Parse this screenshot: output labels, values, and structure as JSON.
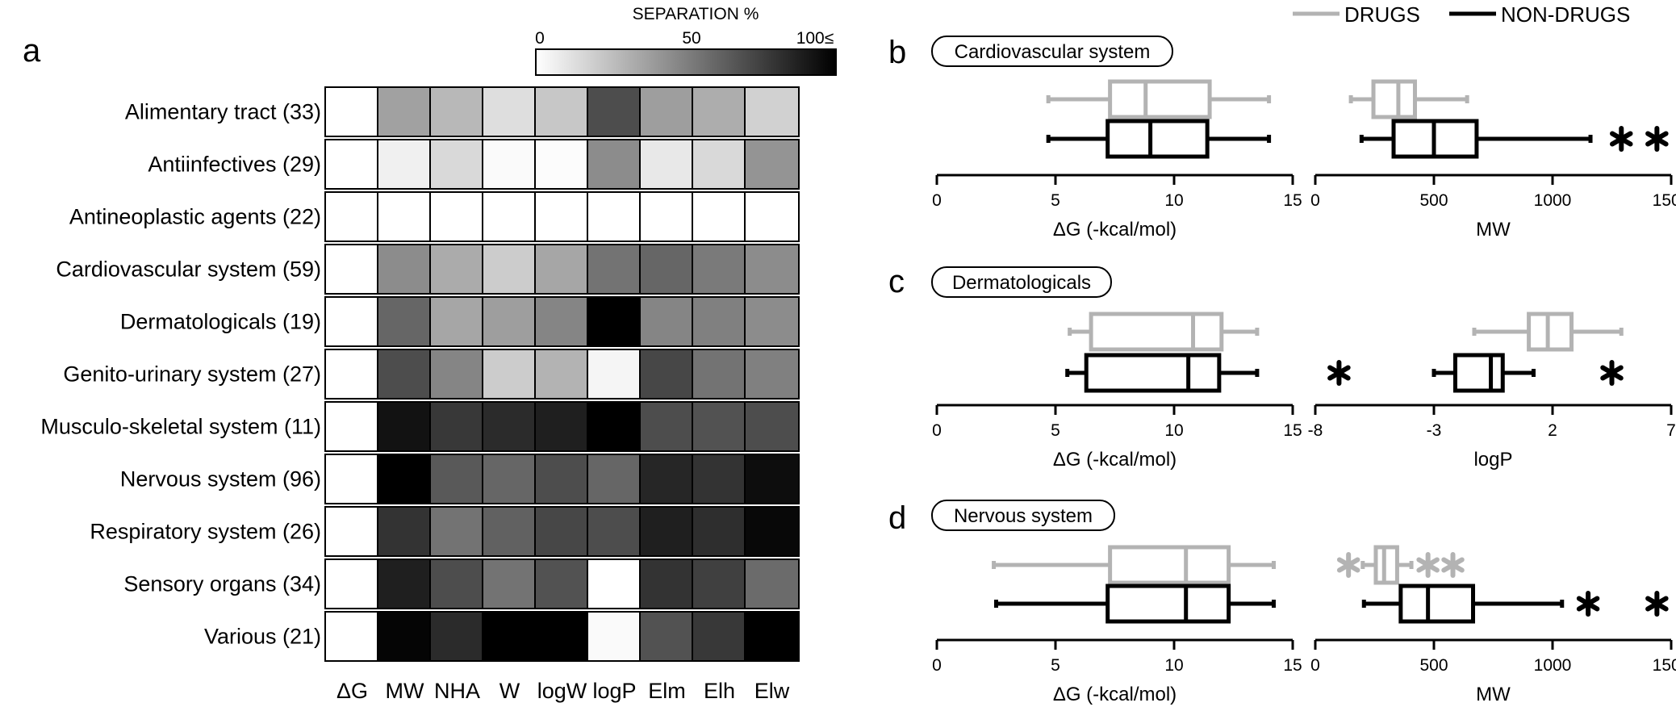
{
  "legend": {
    "items": [
      {
        "label": "DRUGS",
        "color": "#b3b3b3"
      },
      {
        "label": "NON-DRUGS",
        "color": "#000000"
      }
    ]
  },
  "panel_a": {
    "letter": "a",
    "colorbar": {
      "title": "SEPARATION %",
      "ticks": [
        "0",
        "50",
        "100≤"
      ]
    }
  },
  "panel_b": {
    "letter": "b",
    "title": "Cardiovascular system"
  },
  "panel_c": {
    "letter": "c",
    "title": "Dermatologicals"
  },
  "panel_d": {
    "letter": "d",
    "title": "Nervous system"
  },
  "chart_data": [
    {
      "type": "heatmap",
      "panel": "a",
      "colorbar_label": "SEPARATION %",
      "colorbar_range": [
        0,
        100
      ],
      "colorbar_ticks": [
        "0",
        "50",
        "100≤"
      ],
      "rows": [
        "Alimentary tract (33)",
        "Antiinfectives (29)",
        "Antineoplastic agents (22)",
        "Cardiovascular system (59)",
        "Dermatologicals (19)",
        "Genito-urinary system (27)",
        "Musculo-skeletal system (11)",
        "Nervous system (96)",
        "Respiratory system (26)",
        "Sensory organs (34)",
        "Various (21)"
      ],
      "columns": [
        "ΔG",
        "MW",
        "NHA",
        "W",
        "logW",
        "logP",
        "Elm",
        "Elh",
        "Elw"
      ],
      "values": [
        [
          0,
          37,
          28,
          13,
          22,
          70,
          38,
          32,
          18
        ],
        [
          0,
          6,
          15,
          2,
          1,
          45,
          9,
          15,
          42
        ],
        [
          0,
          0,
          0,
          0,
          0,
          0,
          0,
          0,
          0
        ],
        [
          0,
          45,
          33,
          20,
          35,
          55,
          60,
          52,
          45
        ],
        [
          0,
          60,
          35,
          38,
          48,
          100,
          48,
          50,
          45
        ],
        [
          0,
          70,
          48,
          20,
          30,
          4,
          72,
          55,
          50
        ],
        [
          0,
          93,
          78,
          83,
          88,
          100,
          70,
          68,
          70
        ],
        [
          0,
          100,
          65,
          60,
          70,
          60,
          85,
          80,
          95
        ],
        [
          0,
          80,
          55,
          62,
          72,
          70,
          88,
          82,
          97
        ],
        [
          0,
          88,
          70,
          55,
          68,
          0,
          80,
          75,
          58
        ],
        [
          0,
          98,
          83,
          100,
          100,
          2,
          68,
          78,
          100
        ]
      ]
    },
    {
      "type": "boxplot",
      "panel": "b",
      "title": "Cardiovascular system",
      "plots": [
        {
          "xlabel": "ΔG (-kcal/mol)",
          "xlim": [
            0,
            15
          ],
          "xticks": [
            0,
            5,
            10,
            15
          ],
          "series": [
            {
              "name": "DRUGS",
              "whisker_low": 4.7,
              "q1": 7.3,
              "median": 8.8,
              "q3": 11.5,
              "whisker_high": 14.0,
              "outliers": []
            },
            {
              "name": "NON-DRUGS",
              "whisker_low": 4.7,
              "q1": 7.2,
              "median": 9.0,
              "q3": 11.4,
              "whisker_high": 14.0,
              "outliers": []
            }
          ]
        },
        {
          "xlabel": "MW",
          "xlim": [
            0,
            1500
          ],
          "xticks": [
            0,
            500,
            1000,
            1500
          ],
          "series": [
            {
              "name": "DRUGS",
              "whisker_low": 150,
              "q1": 245,
              "median": 350,
              "q3": 420,
              "whisker_high": 640,
              "outliers": []
            },
            {
              "name": "NON-DRUGS",
              "whisker_low": 195,
              "q1": 330,
              "median": 500,
              "q3": 680,
              "whisker_high": 1160,
              "outliers": [
                1290,
                1440
              ]
            }
          ]
        }
      ]
    },
    {
      "type": "boxplot",
      "panel": "c",
      "title": "Dermatologicals",
      "plots": [
        {
          "xlabel": "ΔG (-kcal/mol)",
          "xlim": [
            0,
            15
          ],
          "xticks": [
            0,
            5,
            10,
            15
          ],
          "series": [
            {
              "name": "DRUGS",
              "whisker_low": 5.6,
              "q1": 6.5,
              "median": 10.8,
              "q3": 12.0,
              "whisker_high": 13.5,
              "outliers": []
            },
            {
              "name": "NON-DRUGS",
              "whisker_low": 5.5,
              "q1": 6.3,
              "median": 10.6,
              "q3": 11.9,
              "whisker_high": 13.5,
              "outliers": []
            }
          ]
        },
        {
          "xlabel": "logP",
          "xlim": [
            -8,
            7
          ],
          "xticks": [
            -8,
            -3,
            2,
            7
          ],
          "series": [
            {
              "name": "DRUGS",
              "whisker_low": -1.3,
              "q1": 1.0,
              "median": 1.8,
              "q3": 2.8,
              "whisker_high": 4.9,
              "outliers": []
            },
            {
              "name": "NON-DRUGS",
              "whisker_low": -3.0,
              "q1": -2.1,
              "median": -0.6,
              "q3": -0.1,
              "whisker_high": 1.2,
              "outliers": [
                -7.0,
                4.5
              ]
            }
          ]
        }
      ]
    },
    {
      "type": "boxplot",
      "panel": "d",
      "title": "Nervous system",
      "plots": [
        {
          "xlabel": "ΔG (-kcal/mol)",
          "xlim": [
            0,
            15
          ],
          "xticks": [
            0,
            5,
            10,
            15
          ],
          "series": [
            {
              "name": "DRUGS",
              "whisker_low": 2.4,
              "q1": 7.3,
              "median": 10.5,
              "q3": 12.3,
              "whisker_high": 14.2,
              "outliers": []
            },
            {
              "name": "NON-DRUGS",
              "whisker_low": 2.5,
              "q1": 7.2,
              "median": 10.5,
              "q3": 12.3,
              "whisker_high": 14.2,
              "outliers": []
            }
          ]
        },
        {
          "xlabel": "MW",
          "xlim": [
            0,
            1500
          ],
          "xticks": [
            0,
            500,
            1000,
            1500
          ],
          "series": [
            {
              "name": "DRUGS",
              "whisker_low": 200,
              "q1": 255,
              "median": 290,
              "q3": 345,
              "whisker_high": 405,
              "outliers": [
                140,
                475,
                580
              ]
            },
            {
              "name": "NON-DRUGS",
              "whisker_low": 205,
              "q1": 360,
              "median": 475,
              "q3": 665,
              "whisker_high": 1040,
              "outliers": [
                1150,
                1440
              ]
            }
          ]
        }
      ]
    }
  ]
}
